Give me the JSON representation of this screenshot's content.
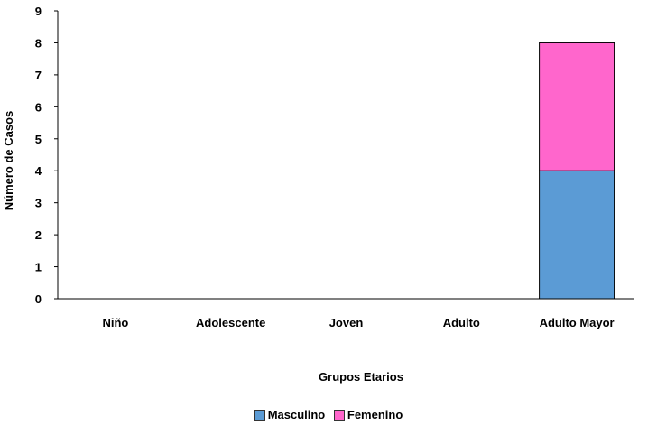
{
  "chart_data": {
    "type": "bar",
    "stacked": true,
    "categories": [
      "Niño",
      "Adolescente",
      "Joven",
      "Adulto",
      "Adulto Mayor"
    ],
    "series": [
      {
        "name": "Masculino",
        "values": [
          0,
          0,
          0,
          0,
          4
        ],
        "color": "#5B9BD5"
      },
      {
        "name": "Femenino",
        "values": [
          0,
          0,
          0,
          0,
          4
        ],
        "color": "#FF66CC"
      }
    ],
    "title": "",
    "xlabel": "Grupos Etarios",
    "ylabel": "Número de Casos",
    "ylim": [
      0,
      9
    ],
    "yticks": [
      0,
      1,
      2,
      3,
      4,
      5,
      6,
      7,
      8,
      9
    ],
    "grid": false,
    "legend_position": "bottom"
  }
}
